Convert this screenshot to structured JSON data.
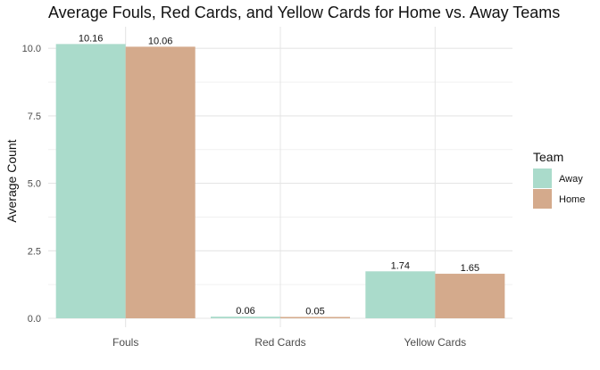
{
  "chart_data": {
    "type": "bar",
    "title": "Average Fouls, Red Cards, and Yellow Cards for Home vs. Away Teams",
    "xlabel": "",
    "ylabel": "Average Count",
    "categories": [
      "Fouls",
      "Red Cards",
      "Yellow Cards"
    ],
    "series": [
      {
        "name": "Away",
        "values": [
          10.16,
          0.06,
          1.74
        ],
        "labels": [
          "10.16",
          "0.06",
          "1.74"
        ],
        "color": "#aadbcb"
      },
      {
        "name": "Home",
        "values": [
          10.06,
          0.05,
          1.65
        ],
        "labels": [
          "10.06",
          "0.05",
          "1.65"
        ],
        "color": "#d4aa8c"
      }
    ],
    "ylim": [
      0,
      10.8
    ],
    "yticks": [
      0,
      2.5,
      5,
      7.5,
      10
    ],
    "ytick_labels": [
      "0.0",
      "2.5",
      "5.0",
      "7.5",
      "10.0"
    ],
    "grid": true,
    "legend": {
      "title": "Team",
      "position": "right"
    }
  }
}
